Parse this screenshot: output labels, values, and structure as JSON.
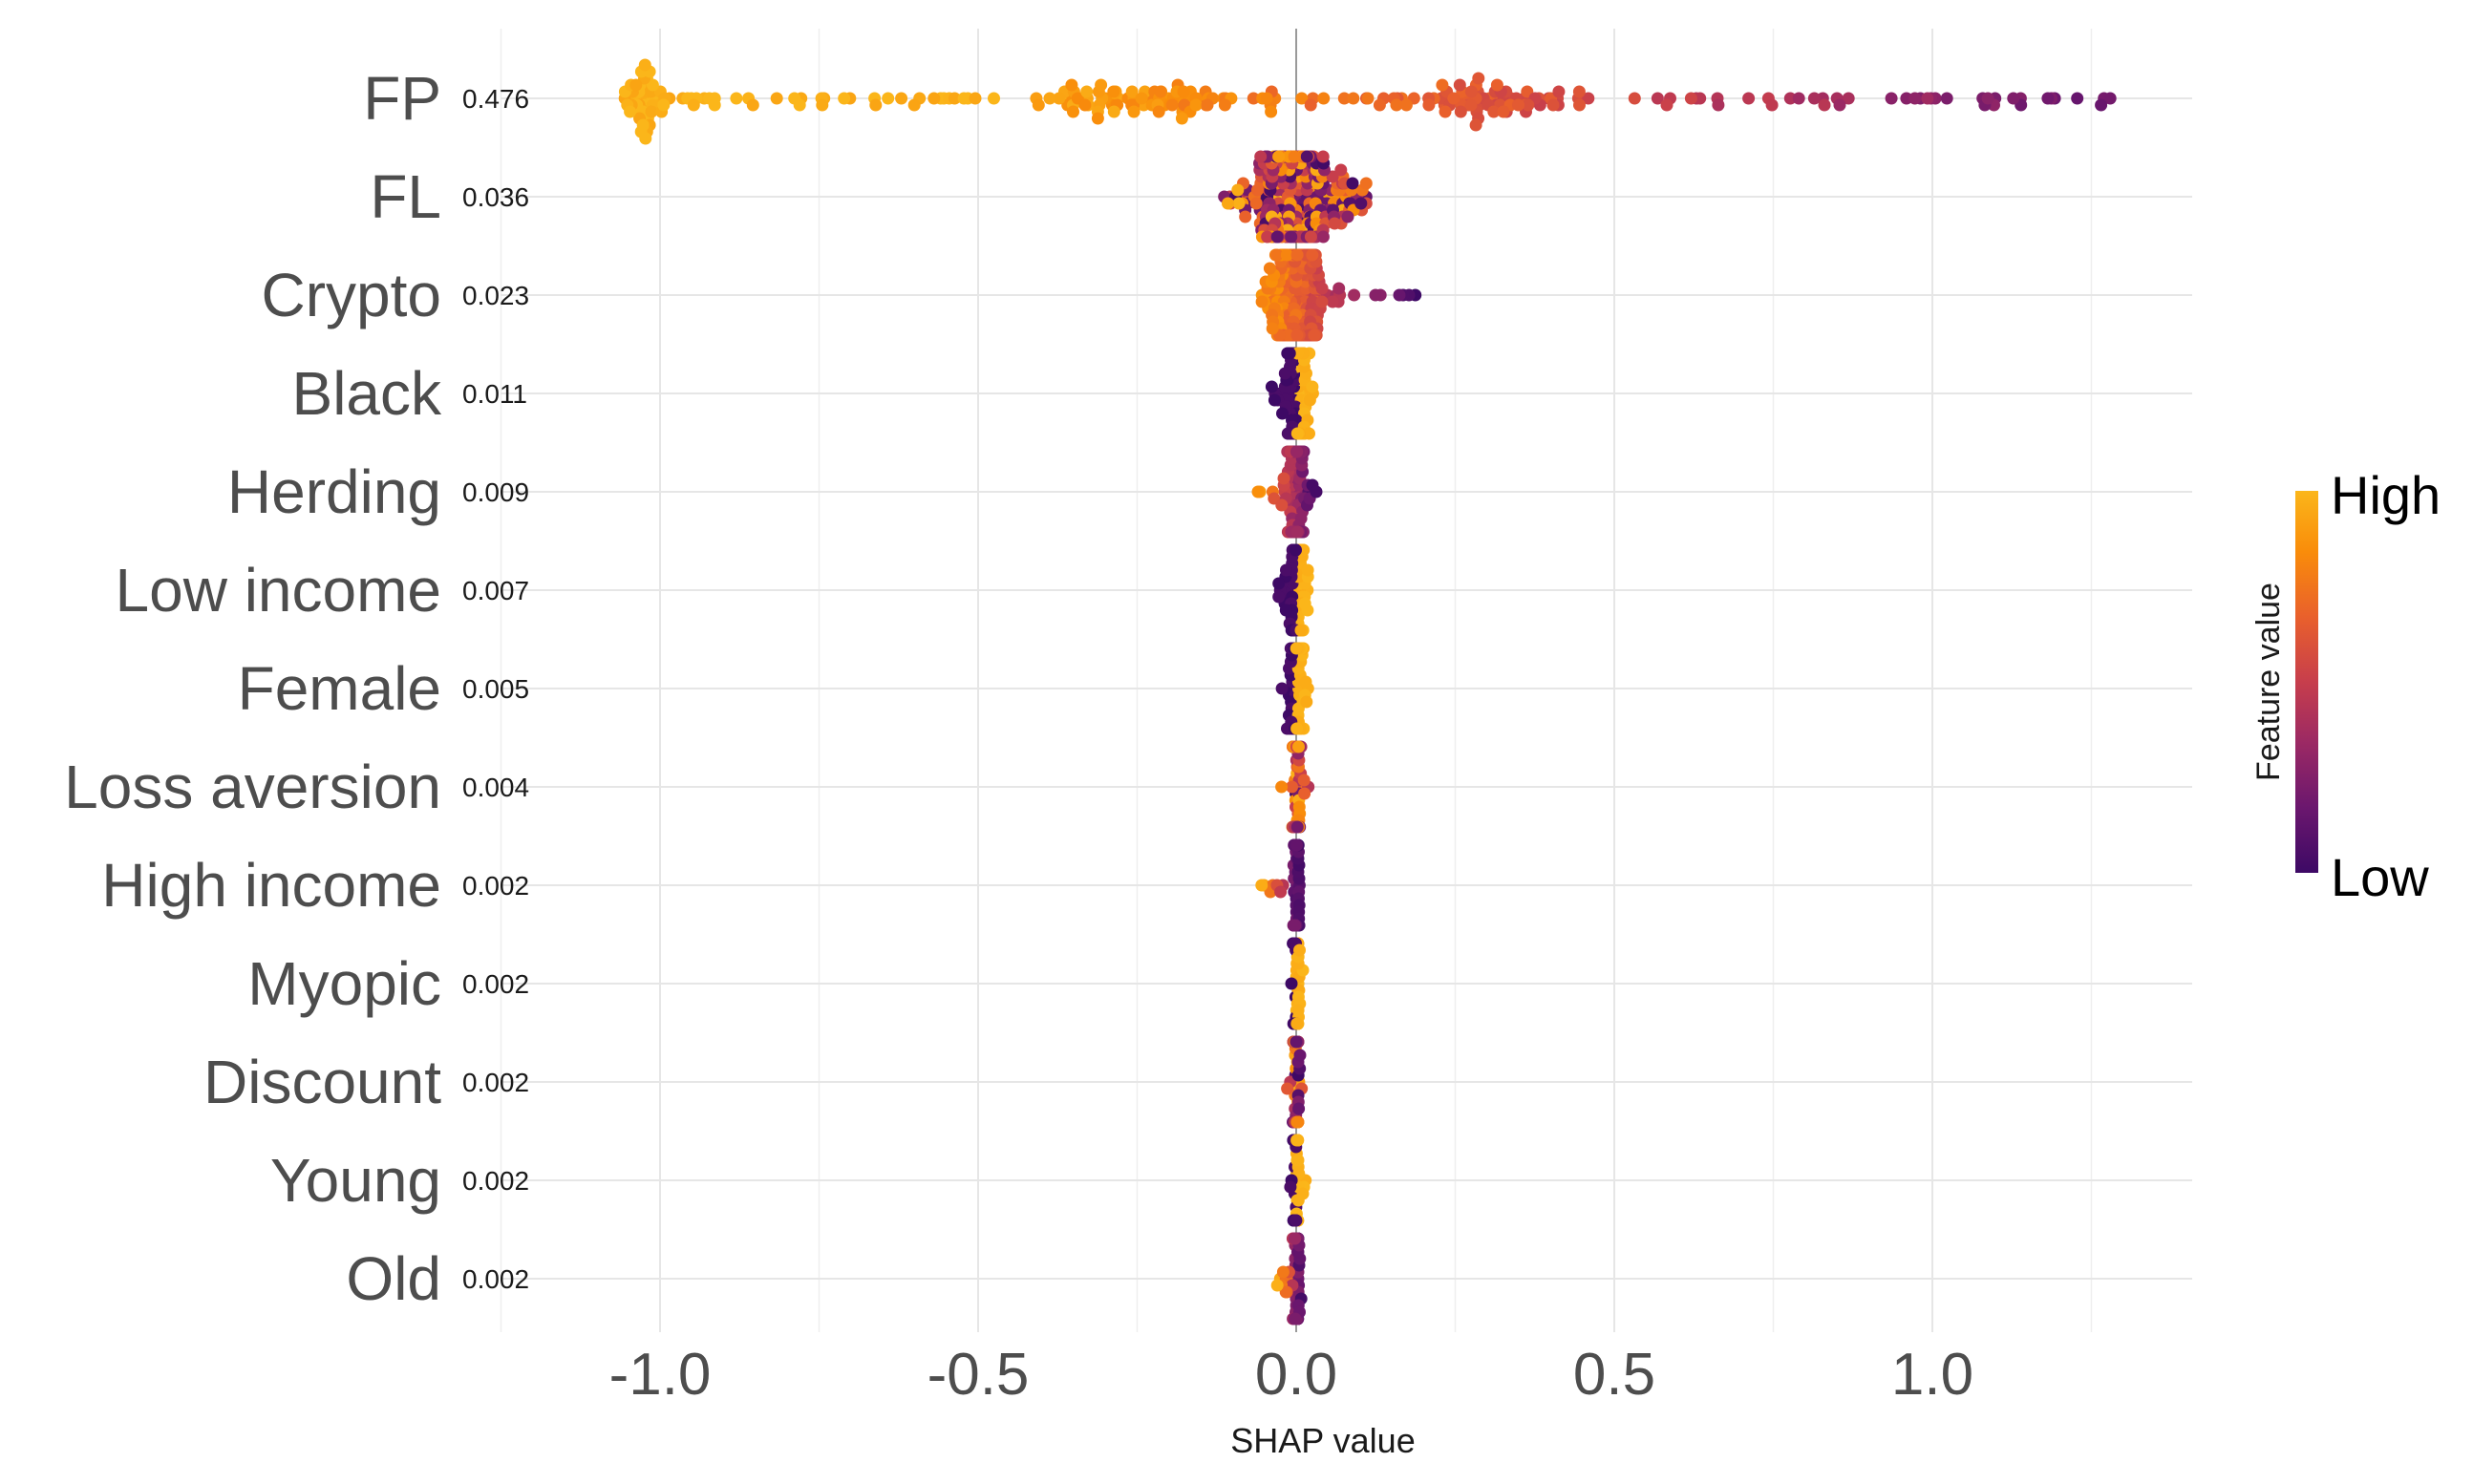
{
  "chart_data": {
    "type": "scatter",
    "subtype": "shap-beeswarm",
    "xlabel": "SHAP value",
    "xlim": [
      -1.25,
      1.41
    ],
    "x_ticks": [
      -1.0,
      -0.5,
      0.0,
      0.5,
      1.0
    ],
    "x_tick_labels": [
      "-1.0",
      "-0.5",
      "0.0",
      "0.5",
      "1.0"
    ],
    "features": [
      {
        "name": "FP",
        "importance": "0.476",
        "min": -1.06,
        "max": 1.28,
        "spread": 0.78,
        "corr": -1,
        "npts": 300,
        "high_side": "negative"
      },
      {
        "name": "FL",
        "importance": "0.036",
        "min": -0.14,
        "max": 0.11,
        "spread": 0.08,
        "corr": 0,
        "npts": 300
      },
      {
        "name": "Crypto",
        "importance": "0.023",
        "min": -0.09,
        "max": 0.19,
        "spread": 0.045,
        "corr": -1,
        "npts": 220
      },
      {
        "name": "Black",
        "importance": "0.011",
        "min": -0.04,
        "max": 0.035,
        "spread": 0.018,
        "corr": 1,
        "npts": 160
      },
      {
        "name": "Herding",
        "importance": "0.009",
        "min": -0.07,
        "max": 0.035,
        "spread": 0.015,
        "corr": -1,
        "npts": 160
      },
      {
        "name": "Low income",
        "importance": "0.007",
        "min": -0.03,
        "max": 0.02,
        "spread": 0.01,
        "corr": 1,
        "npts": 160
      },
      {
        "name": "Female",
        "importance": "0.005",
        "min": -0.025,
        "max": 0.02,
        "spread": 0.008,
        "corr": 1,
        "npts": 150
      },
      {
        "name": "Loss aversion",
        "importance": "0.004",
        "min": -0.025,
        "max": 0.02,
        "spread": 0.006,
        "corr": 0,
        "npts": 150
      },
      {
        "name": "High income",
        "importance": "0.002",
        "min": -0.06,
        "max": 0.01,
        "spread": 0.004,
        "corr": -1,
        "npts": 150
      },
      {
        "name": "Myopic",
        "importance": "0.002",
        "min": -0.01,
        "max": 0.015,
        "spread": 0.004,
        "corr": 1,
        "npts": 140
      },
      {
        "name": "Discount",
        "importance": "0.002",
        "min": -0.015,
        "max": 0.01,
        "spread": 0.004,
        "corr": 0,
        "npts": 140
      },
      {
        "name": "Young",
        "importance": "0.002",
        "min": -0.01,
        "max": 0.015,
        "spread": 0.004,
        "corr": 1,
        "npts": 140
      },
      {
        "name": "Old",
        "importance": "0.002",
        "min": -0.03,
        "max": 0.01,
        "spread": 0.004,
        "corr": -1,
        "npts": 140
      }
    ],
    "legend": {
      "title": "Feature value",
      "high_label": "High",
      "low_label": "Low",
      "placement": "right",
      "colormap": [
        "#3d0965",
        "#6b176e",
        "#9b2964",
        "#c73e4c",
        "#e9602c",
        "#f98c0a",
        "#fbb61a"
      ]
    }
  }
}
